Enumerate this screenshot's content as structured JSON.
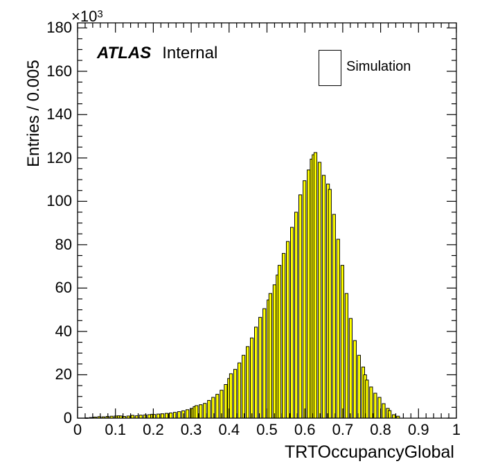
{
  "figure": {
    "background": "#ffffff",
    "annotation": {
      "experiment": "ATLAS",
      "status": "Internal"
    },
    "legend": {
      "entries": [
        {
          "label": "Simulation",
          "fill": "#ffff00",
          "border": "#000000"
        }
      ]
    }
  },
  "chart_data": {
    "type": "bar",
    "subtype": "histogram",
    "title": "",
    "xlabel": "TRTOccupancyGlobal",
    "ylabel": "Entries / 0.005",
    "y_power_prefix": "×10",
    "y_power_exponent": "3",
    "y_unit_multiplier": 1000,
    "xlim": [
      0,
      1
    ],
    "ylim_k": [
      0,
      182.3
    ],
    "x_major_step": 0.1,
    "x_minor_step": 0.02,
    "y_major_step": 20,
    "y_minor_step": 5,
    "grid": false,
    "legend_position": "top-right-inside",
    "bar_fill": "#ffff00",
    "bar_stroke": "#000000",
    "x_tick_labels": [
      "0",
      "0.1",
      "0.2",
      "0.3",
      "0.4",
      "0.5",
      "0.6",
      "0.7",
      "0.8",
      "0.9",
      "1"
    ],
    "y_tick_labels": [
      "0",
      "20",
      "40",
      "60",
      "80",
      "100",
      "120",
      "140",
      "160",
      "180"
    ],
    "series": [
      {
        "name": "Simulation",
        "bin_width": 0.005,
        "bars_x_height_k": [
          [
            0.024,
            0.15
          ],
          [
            0.035,
            0.3
          ],
          [
            0.046,
            0.5
          ],
          [
            0.057,
            0.7
          ],
          [
            0.068,
            0.6
          ],
          [
            0.079,
            0.8
          ],
          [
            0.09,
            0.9
          ],
          [
            0.101,
            1.0
          ],
          [
            0.109,
            1.1
          ],
          [
            0.114,
            1.0
          ],
          [
            0.123,
            0.8
          ],
          [
            0.134,
            1.0
          ],
          [
            0.145,
            1.3
          ],
          [
            0.156,
            1.1
          ],
          [
            0.167,
            1.4
          ],
          [
            0.178,
            1.5
          ],
          [
            0.189,
            1.6
          ],
          [
            0.197,
            1.8
          ],
          [
            0.202,
            1.7
          ],
          [
            0.213,
            1.9
          ],
          [
            0.224,
            2.0
          ],
          [
            0.235,
            2.2
          ],
          [
            0.246,
            2.4
          ],
          [
            0.257,
            2.7
          ],
          [
            0.268,
            3.0
          ],
          [
            0.279,
            3.4
          ],
          [
            0.29,
            3.9
          ],
          [
            0.301,
            4.5
          ],
          [
            0.309,
            5.3
          ],
          [
            0.314,
            5.8
          ],
          [
            0.325,
            6.2
          ],
          [
            0.336,
            6.8
          ],
          [
            0.347,
            8.2
          ],
          [
            0.358,
            9.6
          ],
          [
            0.369,
            11.0
          ],
          [
            0.38,
            12.9
          ],
          [
            0.391,
            15.5
          ],
          [
            0.4,
            18.3
          ],
          [
            0.405,
            20.5
          ],
          [
            0.416,
            22.5
          ],
          [
            0.427,
            25.5
          ],
          [
            0.438,
            29.0
          ],
          [
            0.449,
            33.0
          ],
          [
            0.46,
            37.0
          ],
          [
            0.471,
            42.0
          ],
          [
            0.482,
            46.5
          ],
          [
            0.493,
            50.5
          ],
          [
            0.504,
            54.5
          ],
          [
            0.509,
            57.5
          ],
          [
            0.52,
            61.5
          ],
          [
            0.528,
            66.0
          ],
          [
            0.533,
            70.5
          ],
          [
            0.544,
            76.0
          ],
          [
            0.555,
            81.5
          ],
          [
            0.566,
            88.0
          ],
          [
            0.577,
            95.0
          ],
          [
            0.588,
            103.0
          ],
          [
            0.599,
            109.5
          ],
          [
            0.61,
            114.5
          ],
          [
            0.618,
            119.5
          ],
          [
            0.623,
            121.5
          ],
          [
            0.628,
            122.5
          ],
          [
            0.639,
            118.0
          ],
          [
            0.65,
            112.0
          ],
          [
            0.661,
            108.0
          ],
          [
            0.666,
            105.5
          ],
          [
            0.677,
            94.0
          ],
          [
            0.688,
            82.5
          ],
          [
            0.699,
            70.5
          ],
          [
            0.71,
            57.5
          ],
          [
            0.721,
            46.0
          ],
          [
            0.732,
            35.8
          ],
          [
            0.743,
            29.0
          ],
          [
            0.754,
            23.6
          ],
          [
            0.759,
            20.0
          ],
          [
            0.764,
            17.6
          ],
          [
            0.775,
            14.4
          ],
          [
            0.786,
            11.5
          ],
          [
            0.797,
            9.6
          ],
          [
            0.808,
            6.7
          ],
          [
            0.819,
            4.5
          ],
          [
            0.824,
            3.5
          ],
          [
            0.835,
            1.6
          ],
          [
            0.846,
            0.9
          ]
        ]
      }
    ]
  }
}
